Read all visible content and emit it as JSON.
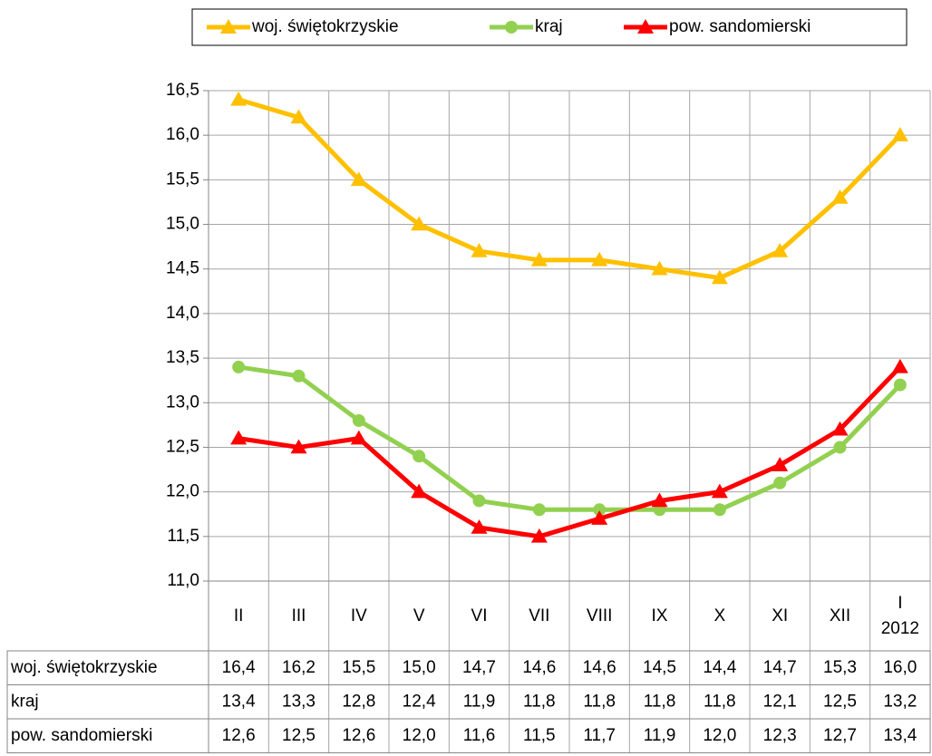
{
  "chart_data": {
    "type": "line",
    "categories": [
      "II",
      "III",
      "IV",
      "V",
      "VI",
      "VII",
      "VIII",
      "IX",
      "X",
      "XI",
      "XII",
      "I\n2012"
    ],
    "series": [
      {
        "name": "woj. świętokrzyskie",
        "color": "#ffc000",
        "marker": "triangle",
        "values": [
          16.4,
          16.2,
          15.5,
          15.0,
          14.7,
          14.6,
          14.6,
          14.5,
          14.4,
          14.7,
          15.3,
          16.0
        ],
        "value_labels": [
          "16,4",
          "16,2",
          "15,5",
          "15,0",
          "14,7",
          "14,6",
          "14,6",
          "14,5",
          "14,4",
          "14,7",
          "15,3",
          "16,0"
        ]
      },
      {
        "name": "kraj",
        "color": "#92d050",
        "marker": "circle",
        "values": [
          13.4,
          13.3,
          12.8,
          12.4,
          11.9,
          11.8,
          11.8,
          11.8,
          11.8,
          12.1,
          12.5,
          13.2
        ],
        "value_labels": [
          "13,4",
          "13,3",
          "12,8",
          "12,4",
          "11,9",
          "11,8",
          "11,8",
          "11,8",
          "11,8",
          "12,1",
          "12,5",
          "13,2"
        ]
      },
      {
        "name": "pow. sandomierski",
        "color": "#ff0000",
        "marker": "triangle",
        "values": [
          12.6,
          12.5,
          12.6,
          12.0,
          11.6,
          11.5,
          11.7,
          11.9,
          12.0,
          12.3,
          12.7,
          13.4
        ],
        "value_labels": [
          "12,6",
          "12,5",
          "12,6",
          "12,0",
          "11,6",
          "11,5",
          "11,7",
          "11,9",
          "12,0",
          "12,3",
          "12,7",
          "13,4"
        ]
      }
    ],
    "ylim": [
      11.0,
      16.5
    ],
    "yticks": [
      {
        "value": 11.0,
        "label": "11,0"
      },
      {
        "value": 11.5,
        "label": "11,5"
      },
      {
        "value": 12.0,
        "label": "12,0"
      },
      {
        "value": 12.5,
        "label": "12,5"
      },
      {
        "value": 13.0,
        "label": "13,0"
      },
      {
        "value": 13.5,
        "label": "13,5"
      },
      {
        "value": 14.0,
        "label": "14,0"
      },
      {
        "value": 14.5,
        "label": "14,5"
      },
      {
        "value": 15.0,
        "label": "15,0"
      },
      {
        "value": 15.5,
        "label": "15,5"
      },
      {
        "value": 16.0,
        "label": "16,0"
      },
      {
        "value": 16.5,
        "label": "16,5"
      }
    ],
    "grid": true,
    "legend": "top",
    "data_table": true
  }
}
